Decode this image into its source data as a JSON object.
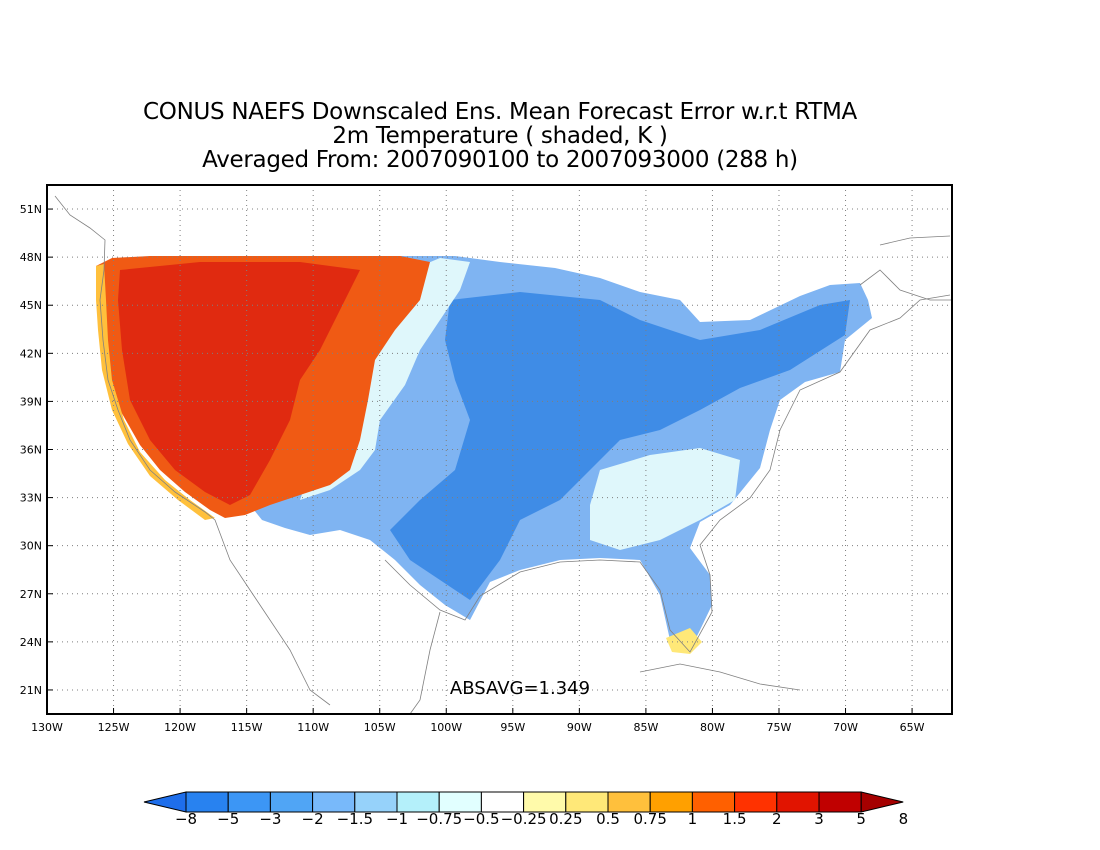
{
  "title": {
    "line1": "CONUS NAEFS Downscaled Ens. Mean Forecast Error w.r.t RTMA",
    "line2": "2m Temperature ( shaded, K )",
    "line3": "Averaged From: 2007090100 to 2007093000 (288 h)"
  },
  "map": {
    "lon_range": [
      -130,
      -62
    ],
    "lat_range": [
      19.5,
      52.5
    ],
    "lon_ticks": [
      "130W",
      "125W",
      "120W",
      "115W",
      "110W",
      "105W",
      "100W",
      "95W",
      "90W",
      "85W",
      "80W",
      "75W",
      "70W",
      "65W"
    ],
    "lat_ticks": [
      "51N",
      "48N",
      "45N",
      "42N",
      "39N",
      "36N",
      "33N",
      "30N",
      "27N",
      "24N",
      "21N"
    ],
    "grid": true,
    "statistic": "ABSAVG=1.349",
    "field_description_regions": [
      {
        "region": "west",
        "level": "warm"
      },
      {
        "region": "central-east",
        "level": "cool"
      }
    ]
  },
  "colorbar": {
    "labels": [
      "−8",
      "−5",
      "−3",
      "−2",
      "−1.5",
      "−1",
      "−0.75",
      "−0.5",
      "−0.25",
      "0.25",
      "0.5",
      "0.75",
      "1",
      "1.5",
      "2",
      "3",
      "5",
      "8"
    ],
    "colors": [
      "#1e6eeb",
      "#2882f0",
      "#3c96f5",
      "#50a5f5",
      "#78b9fa",
      "#96d2fa",
      "#b4f0fa",
      "#e1ffff",
      "#ffffff",
      "#fffaaa",
      "#ffe878",
      "#ffc03c",
      "#ffa000",
      "#ff6000",
      "#ff3200",
      "#e11400",
      "#c00000",
      "#a50000"
    ]
  },
  "colors": {
    "frame": "#000000",
    "grid": "#7f7f7f",
    "coast": "#808080"
  }
}
